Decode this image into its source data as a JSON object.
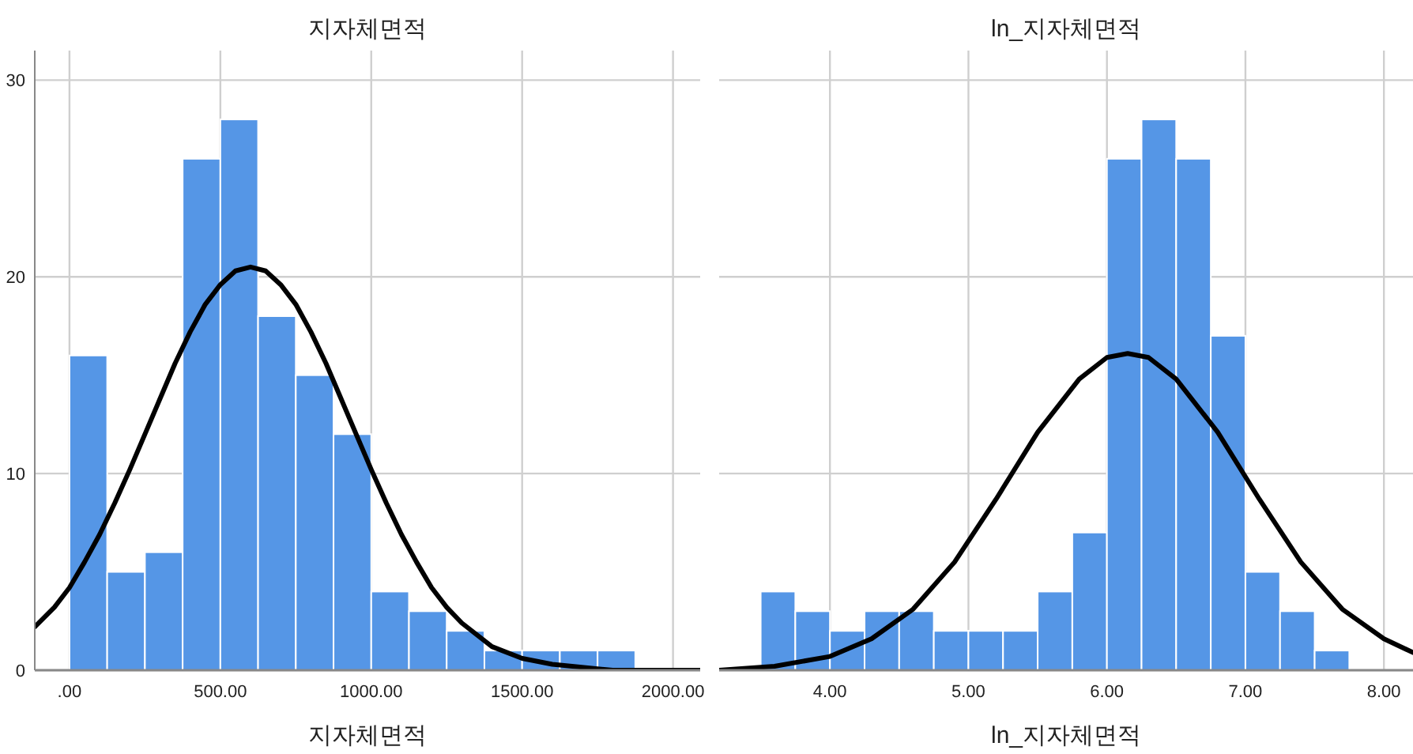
{
  "chart_data": [
    {
      "type": "histogram",
      "title": "지자체면적",
      "xlabel": "지자체면적",
      "bins": [
        0,
        125,
        250,
        375,
        500,
        625,
        750,
        875,
        1000,
        1125,
        1250,
        1375,
        1500,
        1625,
        1750,
        1875
      ],
      "values": [
        16,
        5,
        6,
        26,
        28,
        18,
        15,
        12,
        4,
        3,
        2,
        1,
        1,
        1,
        1
      ],
      "color": "#5596e6",
      "xlim": [
        -115,
        2090
      ],
      "xticks": [
        {
          "value": 0,
          "label": ".00"
        },
        {
          "value": 500,
          "label": "500.00"
        },
        {
          "value": 1000,
          "label": "1000.00"
        },
        {
          "value": 1500,
          "label": "1500.00"
        },
        {
          "value": 2000,
          "label": "2000.00"
        }
      ],
      "ylim": [
        0,
        31.5
      ],
      "yticks": [
        0,
        10,
        20,
        30
      ],
      "grid": true,
      "series": [
        {
          "type": "line",
          "color": "#000000",
          "x": [
            -115,
            -50,
            0,
            50,
            100,
            150,
            200,
            250,
            300,
            350,
            400,
            450,
            500,
            550,
            600,
            650,
            700,
            750,
            800,
            850,
            900,
            950,
            1000,
            1050,
            1100,
            1150,
            1200,
            1250,
            1300,
            1400,
            1500,
            1600,
            1800,
            2090
          ],
          "values": [
            2.2,
            3.2,
            4.2,
            5.5,
            6.9,
            8.5,
            10.2,
            12.0,
            13.8,
            15.6,
            17.2,
            18.6,
            19.6,
            20.3,
            20.5,
            20.3,
            19.6,
            18.6,
            17.2,
            15.6,
            13.8,
            12.0,
            10.2,
            8.5,
            6.9,
            5.5,
            4.2,
            3.2,
            2.4,
            1.2,
            0.6,
            0.3,
            0.0,
            0.0
          ]
        }
      ]
    },
    {
      "type": "histogram",
      "title": "ln_지자체면적",
      "xlabel": "ln_지자체면적",
      "bins": [
        3.5,
        3.75,
        4.0,
        4.25,
        4.5,
        4.75,
        5.0,
        5.25,
        5.5,
        5.75,
        6.0,
        6.25,
        6.5,
        6.75,
        7.0,
        7.25,
        7.5,
        7.75
      ],
      "values": [
        4,
        3,
        2,
        3,
        3,
        2,
        2,
        2,
        4,
        7,
        26,
        28,
        26,
        17,
        5,
        3,
        1
      ],
      "color": "#5596e6",
      "xlim": [
        3.2,
        8.21
      ],
      "xticks": [
        {
          "value": 4,
          "label": "4.00"
        },
        {
          "value": 5,
          "label": "5.00"
        },
        {
          "value": 6,
          "label": "6.00"
        },
        {
          "value": 7,
          "label": "7.00"
        },
        {
          "value": 8,
          "label": "8.00"
        }
      ],
      "ylim": [
        0,
        31.5
      ],
      "yticks": [
        0,
        10,
        20,
        30
      ],
      "grid": true,
      "tick_labels": "x",
      "series": [
        {
          "type": "line",
          "color": "#000000",
          "x": [
            3.2,
            3.6,
            4.0,
            4.3,
            4.6,
            4.9,
            5.2,
            5.5,
            5.8,
            6.0,
            6.15,
            6.3,
            6.5,
            6.8,
            7.1,
            7.4,
            7.7,
            8.0,
            8.21
          ],
          "values": [
            0.0,
            0.2,
            0.7,
            1.6,
            3.1,
            5.5,
            8.7,
            12.1,
            14.8,
            15.9,
            16.1,
            15.9,
            14.8,
            12.1,
            8.7,
            5.5,
            3.1,
            1.6,
            0.9
          ]
        }
      ]
    }
  ]
}
